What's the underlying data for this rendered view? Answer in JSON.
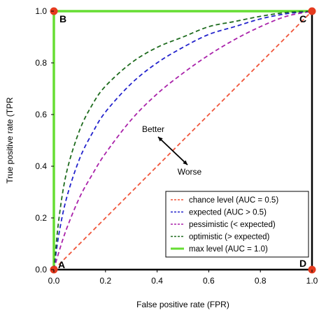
{
  "chart_data": {
    "type": "line",
    "title": "",
    "xlabel": "False positive rate (FPR)",
    "ylabel": "True positive rate (TPR",
    "xlim": [
      0,
      1
    ],
    "ylim": [
      0,
      1
    ],
    "x_ticks": [
      "0.0",
      "0.2",
      "0.4",
      "0.6",
      "0.8",
      "1.0"
    ],
    "y_ticks": [
      "0.0",
      "0.2",
      "0.4",
      "0.6",
      "0.8",
      "1.0"
    ],
    "grid": false,
    "legend_position": "bottom-right",
    "series": [
      {
        "name": "chance level (AUC = 0.5)",
        "color": "#f0553a",
        "style": "dashed",
        "x": [
          0.0,
          0.2,
          0.4,
          0.6,
          0.8,
          1.0
        ],
        "y": [
          0.0,
          0.2,
          0.4,
          0.6,
          0.8,
          1.0
        ]
      },
      {
        "name": "expected (AUC > 0.5)",
        "color": "#2222cc",
        "style": "dashed",
        "x": [
          0.0,
          0.02,
          0.05,
          0.1,
          0.15,
          0.2,
          0.3,
          0.4,
          0.5,
          0.6,
          0.7,
          0.8,
          0.9,
          1.0
        ],
        "y": [
          0.0,
          0.14,
          0.28,
          0.43,
          0.53,
          0.61,
          0.72,
          0.8,
          0.86,
          0.91,
          0.94,
          0.97,
          0.99,
          1.0
        ]
      },
      {
        "name": "pessimistic (< expected)",
        "color": "#aa22aa",
        "style": "dashed",
        "x": [
          0.0,
          0.02,
          0.05,
          0.1,
          0.15,
          0.2,
          0.3,
          0.4,
          0.5,
          0.6,
          0.7,
          0.8,
          0.9,
          1.0
        ],
        "y": [
          0.0,
          0.07,
          0.16,
          0.28,
          0.37,
          0.45,
          0.58,
          0.68,
          0.76,
          0.83,
          0.89,
          0.94,
          0.98,
          1.0
        ]
      },
      {
        "name": "optimistic (> expected)",
        "color": "#1e6b1e",
        "style": "dashed",
        "x": [
          0.0,
          0.02,
          0.05,
          0.1,
          0.15,
          0.2,
          0.3,
          0.4,
          0.5,
          0.6,
          0.7,
          0.8,
          0.9,
          1.0
        ],
        "y": [
          0.0,
          0.2,
          0.38,
          0.54,
          0.64,
          0.71,
          0.8,
          0.86,
          0.9,
          0.94,
          0.96,
          0.98,
          0.995,
          1.0
        ]
      },
      {
        "name": "max level (AUC = 1.0)",
        "color": "#66dd33",
        "style": "solid",
        "x": [
          0.0,
          0.0,
          1.0
        ],
        "y": [
          0.0,
          1.0,
          1.0
        ]
      }
    ],
    "corner_points": [
      {
        "label": "A",
        "x": 0.0,
        "y": 0.0
      },
      {
        "label": "B",
        "x": 0.0,
        "y": 1.0
      },
      {
        "label": "C",
        "x": 1.0,
        "y": 1.0
      },
      {
        "label": "D",
        "x": 1.0,
        "y": 0.0
      }
    ],
    "point_color": "#e53b1f",
    "annotations": {
      "better": "Better",
      "worse": "Worse"
    }
  }
}
